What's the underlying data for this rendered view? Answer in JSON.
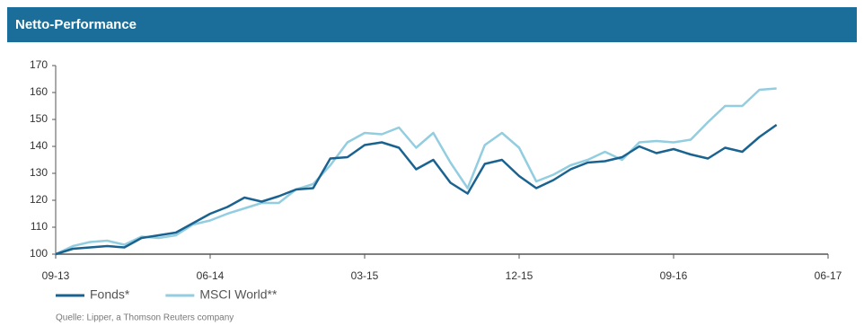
{
  "chart_data": {
    "type": "line",
    "title": "Netto-Performance",
    "x": [
      "09-13",
      "10-13",
      "11-13",
      "12-13",
      "01-14",
      "02-14",
      "03-14",
      "04-14",
      "05-14",
      "06-14",
      "07-14",
      "08-14",
      "09-14",
      "10-14",
      "11-14",
      "12-14",
      "01-15",
      "02-15",
      "03-15",
      "04-15",
      "05-15",
      "06-15",
      "07-15",
      "08-15",
      "09-15",
      "10-15",
      "11-15",
      "12-15",
      "01-16",
      "02-16",
      "03-16",
      "04-16",
      "05-16",
      "06-16",
      "07-16",
      "08-16",
      "09-16",
      "10-16",
      "11-16",
      "12-16",
      "01-17",
      "02-17",
      "03-17"
    ],
    "series": [
      {
        "name": "Fonds*",
        "color": "#1a6390",
        "values": [
          100,
          102,
          102.5,
          103,
          102.5,
          106,
          107,
          108,
          111.5,
          115,
          117.5,
          121,
          119.5,
          121.5,
          124,
          124.5,
          135.5,
          136,
          140.5,
          141.5,
          139.5,
          131.5,
          135,
          126.5,
          122.5,
          133.5,
          135,
          129,
          124.5,
          127.5,
          131.5,
          134,
          134.5,
          136,
          140,
          137.5,
          139,
          137,
          135.5,
          139.5,
          138,
          143.5,
          148
        ]
      },
      {
        "name": "MSCI World**",
        "color": "#93cde0",
        "values": [
          100,
          103,
          104.5,
          105,
          103.5,
          106.5,
          106,
          107,
          111,
          112.5,
          115,
          117,
          119,
          119,
          124,
          126,
          133,
          141.5,
          145,
          144.5,
          147,
          139.5,
          145,
          134,
          124.5,
          140.5,
          145,
          139.5,
          127,
          129.5,
          133,
          135,
          138,
          135,
          141.5,
          142,
          141.5,
          142.5,
          149,
          155,
          155,
          161,
          161.5
        ]
      }
    ],
    "xlim": [
      "09-13",
      "06-17"
    ],
    "xticks": [
      "09-13",
      "06-14",
      "03-15",
      "12-15",
      "09-16",
      "06-17"
    ],
    "ylim": [
      100,
      170
    ],
    "yticks": [
      100,
      110,
      120,
      130,
      140,
      150,
      160,
      170
    ],
    "source": "Quelle: Lipper, a Thomson Reuters company"
  }
}
